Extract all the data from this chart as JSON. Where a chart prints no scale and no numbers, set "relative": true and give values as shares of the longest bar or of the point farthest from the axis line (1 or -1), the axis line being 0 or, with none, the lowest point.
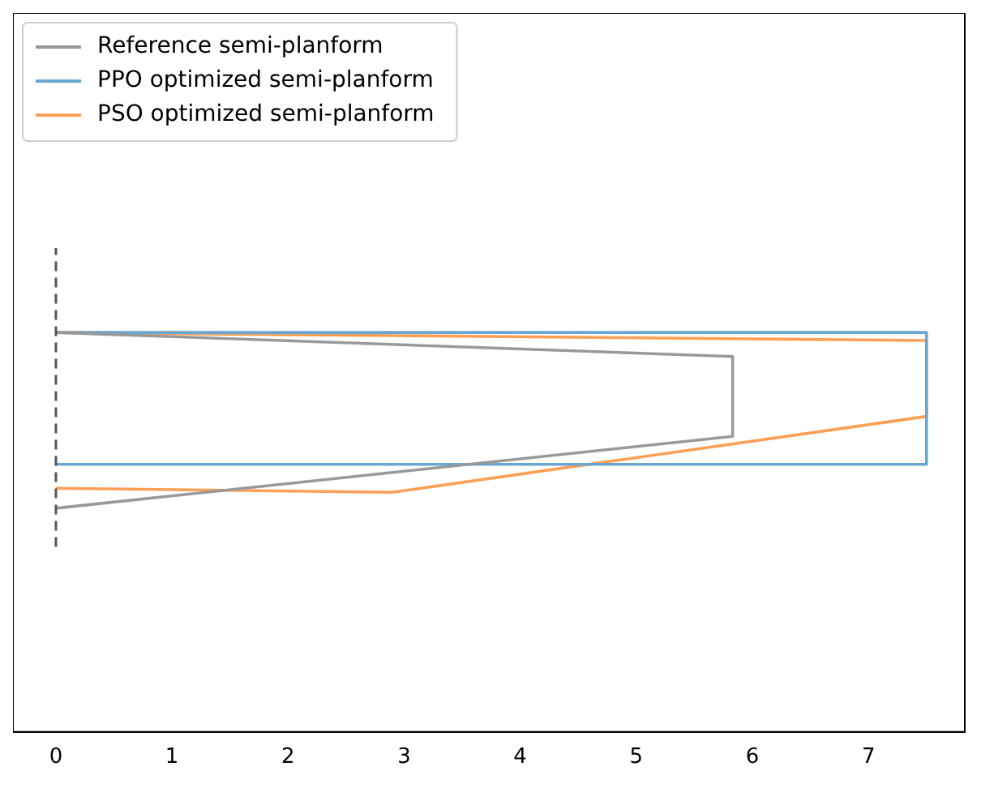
{
  "chart_data": {
    "type": "line",
    "relative": true,
    "xlim": [
      -0.37,
      7.83
    ],
    "xticks": [
      0,
      1,
      2,
      3,
      4,
      5,
      6,
      7
    ],
    "tick_labels": "x",
    "grid": false,
    "legend": "top left",
    "marker": "none",
    "series": [
      {
        "name": "Reference semi-planform",
        "color": "#999999",
        "x": [
          0,
          5.83,
          5.83,
          0
        ],
        "values": [
          1.0,
          0.94,
          0.74,
          0.56
        ]
      },
      {
        "name": "PPO optimized semi-planform",
        "color": "#6aa6d4",
        "x": [
          0,
          7.5,
          7.5,
          0
        ],
        "values": [
          1.0,
          1.0,
          0.67,
          0.67
        ]
      },
      {
        "name": "PSO optimized semi-planform",
        "color": "#ff9f55",
        "x": [
          0,
          7.5,
          7.5,
          2.9,
          0
        ],
        "values": [
          1.0,
          0.98,
          0.79,
          0.6,
          0.61
        ]
      }
    ],
    "ref_lines": [
      {
        "axis": "x",
        "value": 0,
        "color": "#555555",
        "line_style": "dashed"
      }
    ]
  }
}
